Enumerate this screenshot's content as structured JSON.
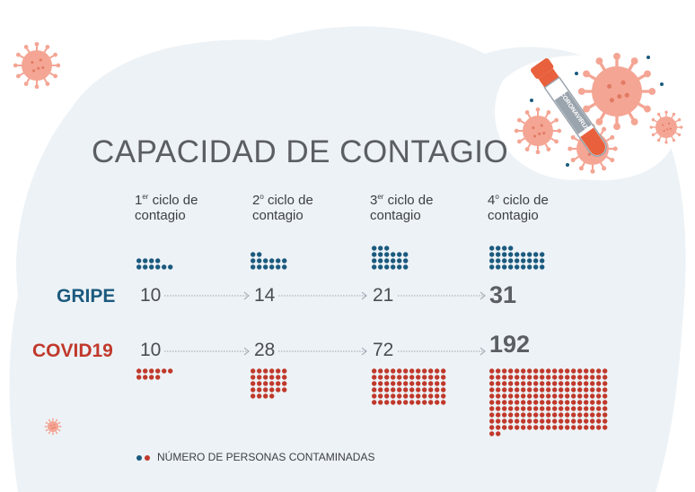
{
  "title": "CAPACIDAD DE CONTAGIO",
  "tube_label": "CORONAVIRUS",
  "cycles": [
    {
      "prefix": "1",
      "sup": "er",
      "rest": " ciclo de",
      "line2": "contagio"
    },
    {
      "prefix": "2",
      "sup": "o",
      "rest": " ciclo de",
      "line2": "contagio"
    },
    {
      "prefix": "3",
      "sup": "er",
      "rest": " ciclo de",
      "line2": "contagio"
    },
    {
      "prefix": "4",
      "sup": "o",
      "rest": " ciclo de",
      "line2": "contagio"
    }
  ],
  "rows": {
    "gripe": {
      "label": "GRIPE",
      "values": [
        "10",
        "14",
        "21",
        "31"
      ]
    },
    "covid": {
      "label": "COVID19",
      "values": [
        "10",
        "28",
        "72",
        "192"
      ]
    }
  },
  "legend": "NÚMERO DE PERSONAS CONTAMINADAS",
  "colors": {
    "gripe": "#1b5a7e",
    "covid": "#c0392b",
    "virus": "#f4a594",
    "tube_cap": "#e8603c",
    "blob": "#edf2f6"
  },
  "chart_data": {
    "type": "dot-matrix",
    "categories": [
      "1er ciclo de contagio",
      "2º ciclo de contagio",
      "3er ciclo de contagio",
      "4º ciclo de contagio"
    ],
    "series": [
      {
        "name": "GRIPE",
        "values": [
          10,
          14,
          21,
          31
        ]
      },
      {
        "name": "COVID19",
        "values": [
          10,
          28,
          72,
          192
        ]
      }
    ]
  }
}
